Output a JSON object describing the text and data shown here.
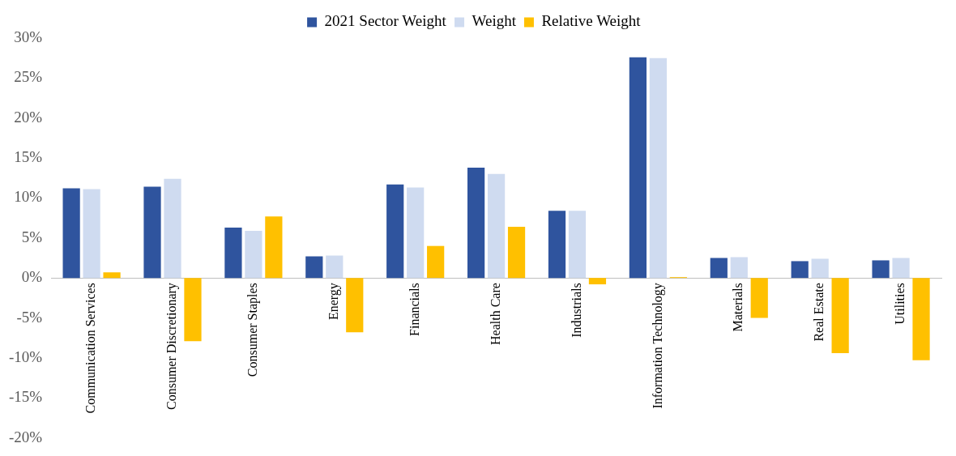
{
  "chart_data": {
    "type": "bar",
    "categories": [
      "Communication Services",
      "Consumer Discretionary",
      "Consumer Staples",
      "Energy",
      "Financials",
      "Health Care",
      "Industrials",
      "Information Technology",
      "Materials",
      "Real Estate",
      "Utilities"
    ],
    "series": [
      {
        "name": "2021 Sector Weight",
        "color": "#2f549e",
        "values": [
          11.2,
          11.4,
          6.3,
          2.7,
          11.7,
          13.8,
          8.4,
          27.6,
          2.5,
          2.1,
          2.2
        ]
      },
      {
        "name": "Weight",
        "color": "#cfdbf0",
        "values": [
          11.1,
          12.4,
          5.9,
          2.8,
          11.3,
          13.0,
          8.4,
          27.5,
          2.6,
          2.4,
          2.5
        ]
      },
      {
        "name": "Relative Weight",
        "color": "#ffc000",
        "values": [
          0.7,
          -7.9,
          7.7,
          -6.8,
          4.0,
          6.4,
          -0.8,
          0.1,
          -5.0,
          -9.4,
          -10.3
        ]
      }
    ],
    "ylim": [
      -20,
      30
    ],
    "yticks": [
      {
        "value": -20,
        "label": "-20%"
      },
      {
        "value": -15,
        "label": "-15%"
      },
      {
        "value": -10,
        "label": "-10%"
      },
      {
        "value": -5,
        "label": "-5%"
      },
      {
        "value": 0,
        "label": "0%"
      },
      {
        "value": 5,
        "label": "5%"
      },
      {
        "value": 10,
        "label": "10%"
      },
      {
        "value": 15,
        "label": "15%"
      },
      {
        "value": 20,
        "label": "20%"
      },
      {
        "value": 25,
        "label": "25%"
      },
      {
        "value": 30,
        "label": "30%"
      }
    ],
    "grid": false,
    "legend": "top"
  }
}
